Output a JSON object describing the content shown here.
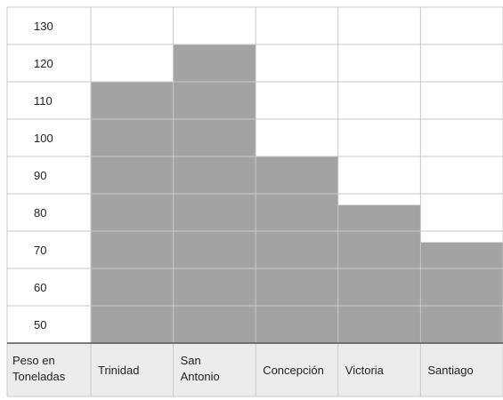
{
  "chart_data": {
    "type": "bar",
    "title": "",
    "xlabel": "",
    "ylabel": "Peso en Toneladas",
    "ylabel_lines": [
      "Peso en",
      "Toneladas"
    ],
    "categories": [
      "Trinidad",
      "San Antonio",
      "Concepción",
      "Victoria",
      "Santiago"
    ],
    "category_lines": [
      [
        "Trinidad"
      ],
      [
        "San",
        "Antonio"
      ],
      [
        "Concepción"
      ],
      [
        "Victoria"
      ],
      [
        "Santiago"
      ]
    ],
    "values": [
      115,
      125,
      95,
      82,
      72
    ],
    "y_ticks": [
      "130",
      "120",
      "110",
      "100",
      "90",
      "80",
      "70",
      "60",
      "50"
    ],
    "ylim": [
      45,
      135
    ],
    "grid": true,
    "colors": {
      "bar": "#a3a3a3",
      "grid": "#c9c9c9",
      "header_bg": "#ececec",
      "border": "#555555"
    }
  }
}
